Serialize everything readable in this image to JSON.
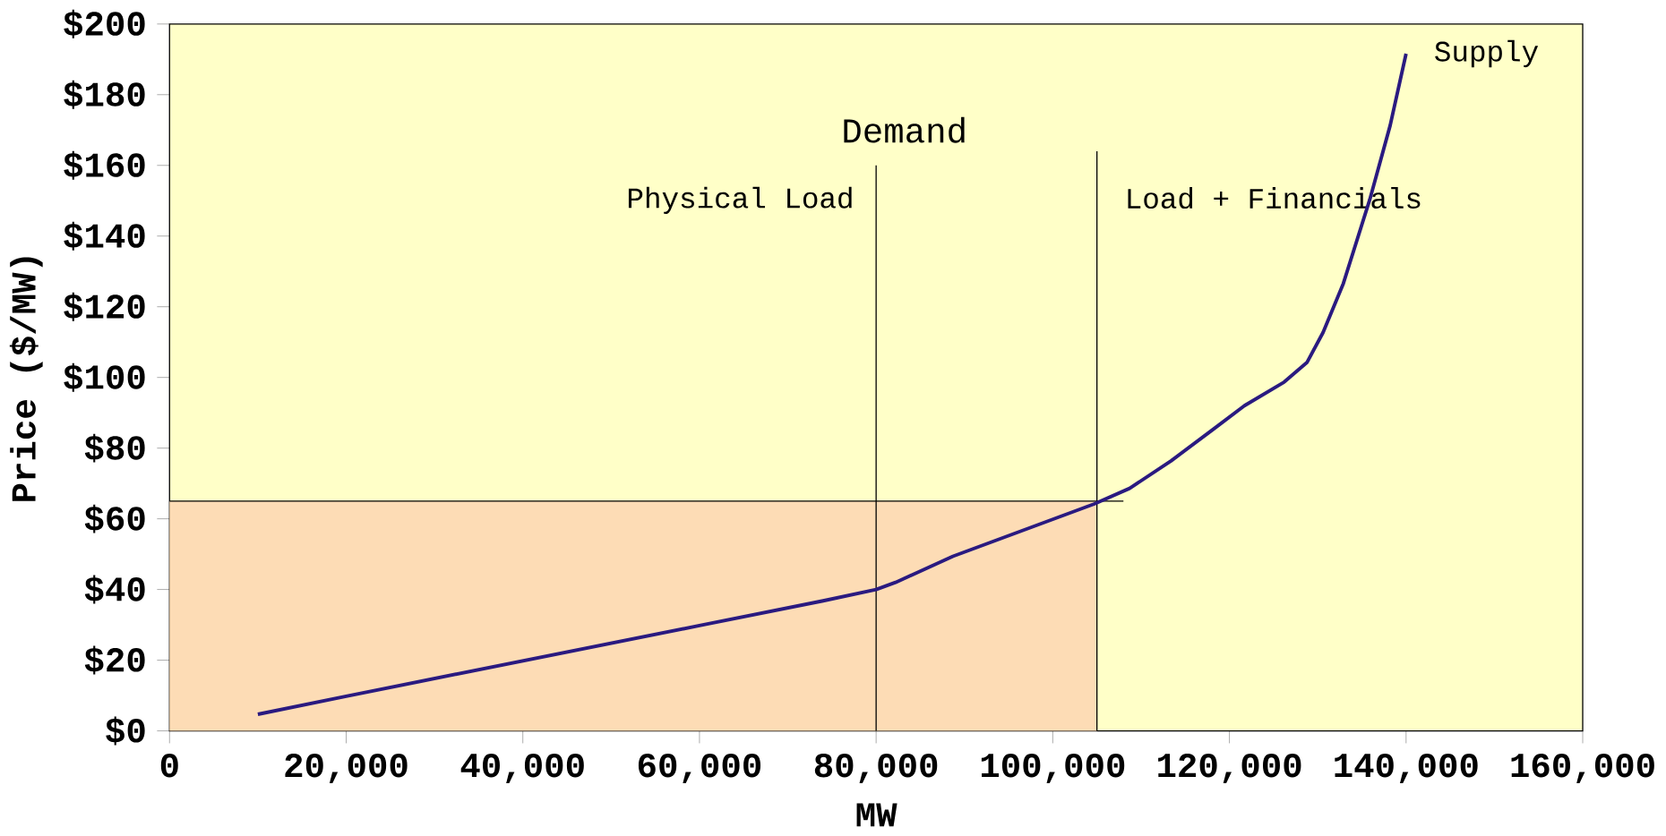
{
  "chart_data": {
    "type": "line",
    "xlabel": "MW",
    "ylabel": "Price ($/MW)",
    "xlim": [
      0,
      160000
    ],
    "ylim": [
      0,
      200
    ],
    "xticks": [
      0,
      {
        "value": 20000,
        "label": "20,000"
      },
      {
        "value": 40000,
        "label": "40,000"
      },
      {
        "value": 60000,
        "label": "60,000"
      },
      {
        "value": 80000,
        "label": "80,000"
      },
      {
        "value": 100000,
        "label": "100,000"
      },
      {
        "value": 120000,
        "label": "120,000"
      },
      {
        "value": 140000,
        "label": "140,000"
      },
      {
        "value": 160000,
        "label": "160,000"
      }
    ],
    "yticks": [
      {
        "value": 0,
        "label": "$0"
      },
      {
        "value": 20,
        "label": "$20"
      },
      {
        "value": 40,
        "label": "$40"
      },
      {
        "value": 60,
        "label": "$60"
      },
      {
        "value": 80,
        "label": "$80"
      },
      {
        "value": 100,
        "label": "$100"
      },
      {
        "value": 120,
        "label": "$120"
      },
      {
        "value": 140,
        "label": "$140"
      },
      {
        "value": 160,
        "label": "$160"
      },
      {
        "value": 180,
        "label": "$180"
      },
      {
        "value": 200,
        "label": "$200"
      }
    ],
    "series": [
      {
        "type": "area",
        "color": "#fddcb5",
        "x": [
          0,
          105000
        ],
        "values": [
          65,
          65
        ]
      },
      {
        "type": "line",
        "color": "#000000",
        "x": [
          0,
          108000
        ],
        "values": [
          65,
          65
        ]
      },
      {
        "type": "line",
        "name": "Physical Load",
        "color": "#000000",
        "x": [
          80000,
          80000
        ],
        "values": [
          0,
          160
        ]
      },
      {
        "type": "line",
        "name": "Load + Financials",
        "color": "#000000",
        "x": [
          105000,
          105000
        ],
        "values": [
          0,
          164
        ]
      },
      {
        "name": "Supply",
        "color": "#2a1a80",
        "x": [
          10000,
          20000,
          40000,
          60000,
          74000,
          80000,
          82200,
          88700,
          104700,
          108700,
          113400,
          118200,
          121700,
          126200,
          128800,
          130600,
          132900,
          135900,
          138200,
          140000
        ],
        "values": [
          4.7,
          9.8,
          19.8,
          29.8,
          36.8,
          40,
          42,
          49.4,
          64.2,
          68.6,
          76.4,
          85.4,
          92,
          98.7,
          104.3,
          112.7,
          126.6,
          150.4,
          171.3,
          191.6
        ]
      }
    ],
    "annotations": [
      "Demand"
    ],
    "grid": false,
    "marker": "none",
    "line_style": "solid"
  }
}
